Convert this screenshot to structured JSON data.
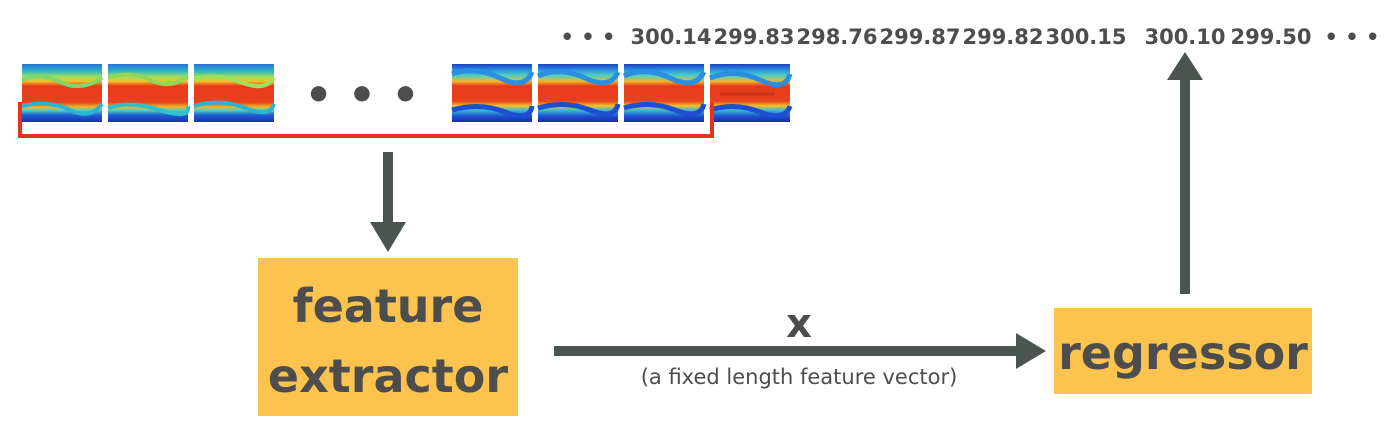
{
  "sequence": {
    "values": [
      "300.14",
      "299.83",
      "298.76",
      "299.87",
      "299.82",
      "300.15",
      "300.10",
      "299.50"
    ],
    "lead_ellipsis": "• • •",
    "trail_ellipsis": "• • •"
  },
  "frames": {
    "left_count": 3,
    "right_count": 4,
    "gap_ellipsis": "• • •"
  },
  "nodes": {
    "feature_extractor": {
      "line1": "feature",
      "line2": "extractor"
    },
    "regressor": {
      "label": "regressor"
    }
  },
  "edge": {
    "symbol": "x",
    "description": "(a fixed length feature vector)"
  },
  "colors": {
    "box_fill": "#fcc44e",
    "arrow": "#4a5550",
    "bracket": "#e8321e",
    "text": "#4d4d4d"
  }
}
